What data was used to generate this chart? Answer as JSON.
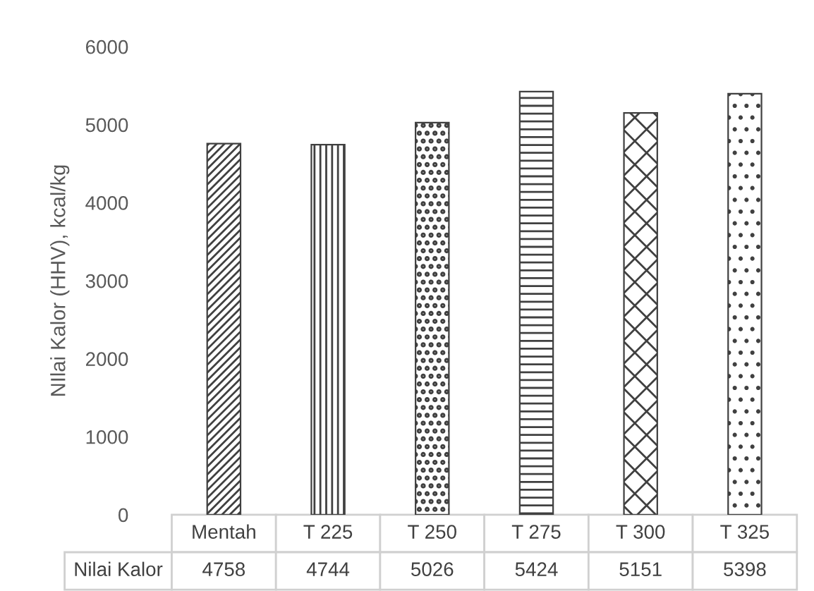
{
  "chart_data": {
    "type": "bar",
    "ylabel": "NIlai Kalor (HHV), kcal/kg",
    "categories": [
      "Mentah",
      "T 225",
      "T 250",
      "T 275",
      "T 300",
      "T 325"
    ],
    "series": [
      {
        "name": "Nilai Kalor",
        "color": "#404040",
        "values": [
          4758,
          4744,
          5026,
          5424,
          5151,
          5398
        ]
      }
    ],
    "ylim": [
      0,
      6000
    ],
    "yticks": [
      0,
      1000,
      2000,
      3000,
      4000,
      5000,
      6000
    ],
    "data_labels": true,
    "grid": false,
    "legend": false
  }
}
